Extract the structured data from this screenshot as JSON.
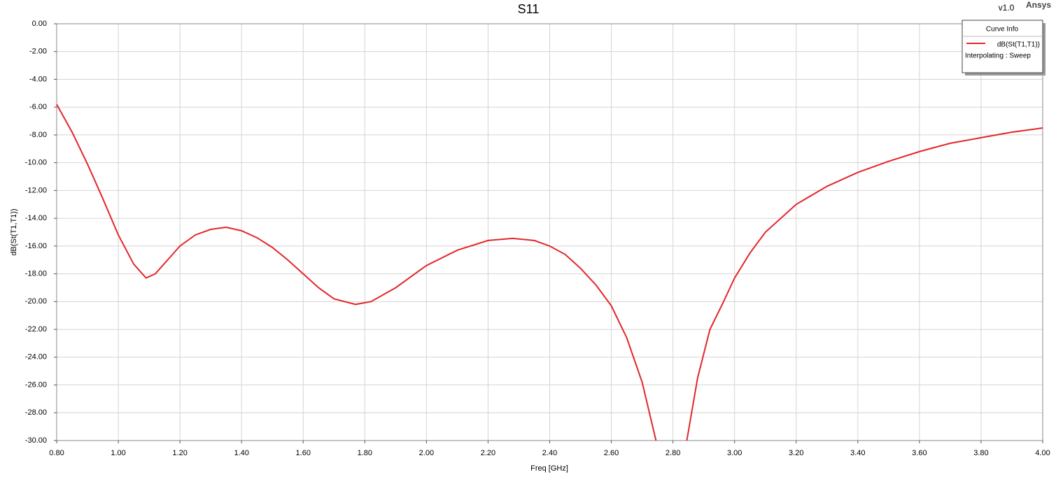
{
  "chart_data": {
    "type": "line",
    "title": "S11",
    "version": "v1.0",
    "brand": "Ansys",
    "x_label": "Freq [GHz]",
    "y_label": "dB(St(T1,T1))",
    "legend_title": "Curve Info",
    "legend_note": "Interpolating : Sweep",
    "legend": "top-right",
    "grid": true,
    "xlim": [
      0.8,
      4.0
    ],
    "ylim": [
      -30,
      0
    ],
    "xticks": [
      {
        "value": 0.8,
        "label": "0.80"
      },
      {
        "value": 1.0,
        "label": "1.00"
      },
      {
        "value": 1.2,
        "label": "1.20"
      },
      {
        "value": 1.4,
        "label": "1.40"
      },
      {
        "value": 1.6,
        "label": "1.60"
      },
      {
        "value": 1.8,
        "label": "1.80"
      },
      {
        "value": 2.0,
        "label": "2.00"
      },
      {
        "value": 2.2,
        "label": "2.20"
      },
      {
        "value": 2.4,
        "label": "2.40"
      },
      {
        "value": 2.6,
        "label": "2.60"
      },
      {
        "value": 2.8,
        "label": "2.80"
      },
      {
        "value": 3.0,
        "label": "3.00"
      },
      {
        "value": 3.2,
        "label": "3.20"
      },
      {
        "value": 3.4,
        "label": "3.40"
      },
      {
        "value": 3.6,
        "label": "3.60"
      },
      {
        "value": 3.8,
        "label": "3.80"
      },
      {
        "value": 4.0,
        "label": "4.00"
      }
    ],
    "yticks": [
      {
        "value": 0,
        "label": "0.00"
      },
      {
        "value": -2,
        "label": "-2.00"
      },
      {
        "value": -4,
        "label": "-4.00"
      },
      {
        "value": -6,
        "label": "-6.00"
      },
      {
        "value": -8,
        "label": "-8.00"
      },
      {
        "value": -10,
        "label": "-10.00"
      },
      {
        "value": -12,
        "label": "-12.00"
      },
      {
        "value": -14,
        "label": "-14.00"
      },
      {
        "value": -16,
        "label": "-16.00"
      },
      {
        "value": -18,
        "label": "-18.00"
      },
      {
        "value": -20,
        "label": "-20.00"
      },
      {
        "value": -22,
        "label": "-22.00"
      },
      {
        "value": -24,
        "label": "-24.00"
      },
      {
        "value": -26,
        "label": "-26.00"
      },
      {
        "value": -28,
        "label": "-28.00"
      },
      {
        "value": -30,
        "label": "-30.00"
      }
    ],
    "x": [
      0.8,
      0.85,
      0.9,
      0.95,
      1.0,
      1.05,
      1.09,
      1.12,
      1.16,
      1.2,
      1.25,
      1.3,
      1.35,
      1.4,
      1.45,
      1.5,
      1.55,
      1.6,
      1.65,
      1.7,
      1.77,
      1.82,
      1.9,
      2.0,
      2.1,
      2.2,
      2.28,
      2.35,
      2.4,
      2.45,
      2.5,
      2.55,
      2.6,
      2.65,
      2.7,
      2.745,
      2.795,
      2.845,
      2.88,
      2.92,
      2.96,
      3.0,
      3.05,
      3.1,
      3.2,
      3.3,
      3.4,
      3.5,
      3.6,
      3.7,
      3.8,
      3.9,
      4.0
    ],
    "series": [
      {
        "name": "dB(St(T1,T1))",
        "color": "#e3262b",
        "values": [
          -5.8,
          -7.8,
          -10.1,
          -12.6,
          -15.2,
          -17.3,
          -18.3,
          -18.0,
          -17.0,
          -16.0,
          -15.2,
          -14.8,
          -14.65,
          -14.9,
          -15.4,
          -16.1,
          -17.0,
          -18.0,
          -19.0,
          -19.8,
          -20.2,
          -20.0,
          -19.0,
          -17.4,
          -16.3,
          -15.6,
          -15.45,
          -15.6,
          -16.0,
          -16.6,
          -17.6,
          -18.8,
          -20.3,
          -22.6,
          -25.8,
          -30,
          null,
          -30,
          -25.5,
          -22.0,
          -20.2,
          -18.3,
          -16.5,
          -15.0,
          -13.0,
          -11.7,
          -10.7,
          -9.9,
          -9.2,
          -8.6,
          -8.2,
          -7.8,
          -7.5
        ]
      }
    ]
  }
}
